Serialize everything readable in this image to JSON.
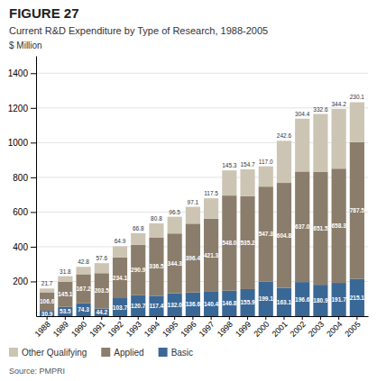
{
  "chart_data": {
    "type": "bar",
    "stacked": true,
    "title": "FIGURE 27",
    "subtitle": "Current R&D Expenditure by Type of Research, 1988-2005",
    "ylabel": "$ Million",
    "source": "Source: PMPRI",
    "categories": [
      "1988",
      "1989",
      "1990",
      "1991",
      "1992",
      "1993",
      "1994",
      "1995",
      "1996",
      "1997",
      "1998",
      "1999",
      "2000",
      "2001",
      "2002",
      "2003",
      "2004",
      "2005"
    ],
    "series": [
      {
        "name": "Basic",
        "color": "#3a6896",
        "values": [
          30.9,
          53.5,
          74.3,
          44.2,
          103.7,
          120.7,
          117.4,
          132,
          136.6,
          140.4,
          146.8,
          155.9,
          199.1,
          163.1,
          196.6,
          180.9,
          191.7,
          215.1
        ],
        "value_labels": [
          "30.9",
          "53.5",
          "74.3",
          "44.2",
          "103.7",
          "120.7",
          "117.4",
          "132.0",
          "136.6",
          "140.4",
          "146.8",
          "155.9",
          "199.1",
          "163.1",
          "196.6",
          "180.9",
          "191.7",
          "215.1"
        ]
      },
      {
        "name": "Applied",
        "color": "#8b7d6b",
        "values": [
          106.6,
          145.1,
          167.2,
          203.5,
          234.1,
          290.9,
          336.5,
          344.3,
          396.4,
          421.3,
          548,
          535.2,
          547.3,
          604.8,
          637,
          651.5,
          658.3,
          787.5
        ],
        "value_labels": [
          "106.6",
          "145.1",
          "167.2",
          "203.5",
          "234.1",
          "290.9",
          "336.5",
          "344.3",
          "396.4",
          "421.3",
          "548.0",
          "535.2",
          "547.3",
          "604.8",
          "637.0",
          "651.5",
          "658.3",
          "787.5"
        ]
      },
      {
        "name": "Other Qualifying",
        "color": "#cdc5b4",
        "values": [
          21.7,
          31.8,
          42.8,
          57.6,
          64.9,
          66.8,
          80.8,
          96.5,
          97.1,
          117.5,
          145.3,
          154.7,
          117,
          242.6,
          304.4,
          332.6,
          344.2,
          230.1
        ],
        "value_labels": [
          "21.7",
          "31.8",
          "42.8",
          "57.6",
          "64.9",
          "66.8",
          "80.8",
          "96.5",
          "97.1",
          "117.5",
          "145.3",
          "154.7",
          "117.0",
          "242.6",
          "304.4",
          "332.6",
          "344.2",
          "230.1"
        ]
      }
    ],
    "ylim": [
      0,
      1500
    ],
    "yticks": [
      200,
      400,
      600,
      800,
      1000,
      1200,
      1400
    ],
    "grid": true,
    "legend": "bottom",
    "data_labels": true
  }
}
